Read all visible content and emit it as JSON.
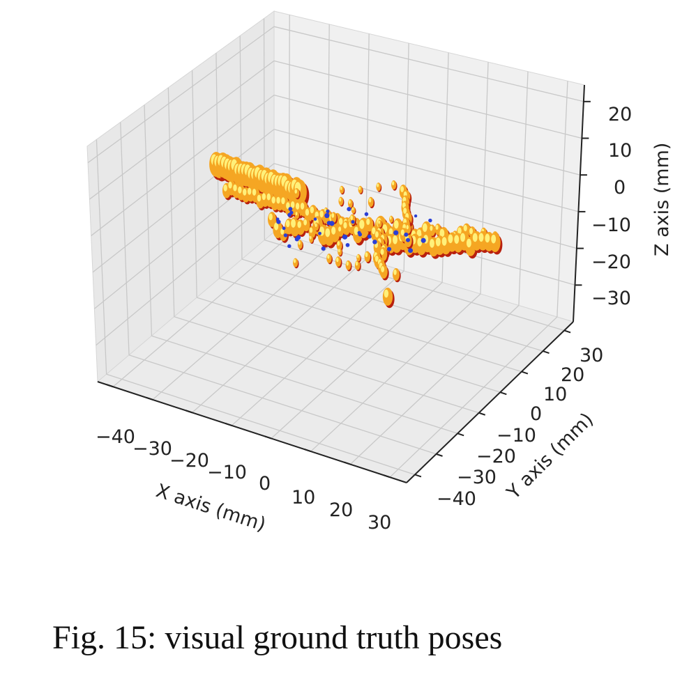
{
  "caption": "Fig. 15: visual ground truth poses",
  "chart_data": {
    "type": "scatter3d",
    "xlabel": "X axis (mm)",
    "ylabel": "Y axis (mm)",
    "zlabel": "Z axis (mm)",
    "xticks": [
      "−40",
      "−30",
      "−20",
      "−10",
      "0",
      "10",
      "20",
      "30"
    ],
    "yticks": [
      "−40",
      "−30",
      "−20",
      "−10",
      "0",
      "10",
      "20",
      "30"
    ],
    "zticks": [
      "20",
      "10",
      "0",
      "−10",
      "−20",
      "−30"
    ],
    "xlim": [
      -45,
      35
    ],
    "ylim": [
      -45,
      35
    ],
    "zlim": [
      -35,
      25
    ],
    "grid": true,
    "colors": {
      "pose_hot": "#f5a623",
      "pose_dark": "#b8200e",
      "pose_light": "#fff07a",
      "marker_blue": "#2a3fd6"
    }
  }
}
